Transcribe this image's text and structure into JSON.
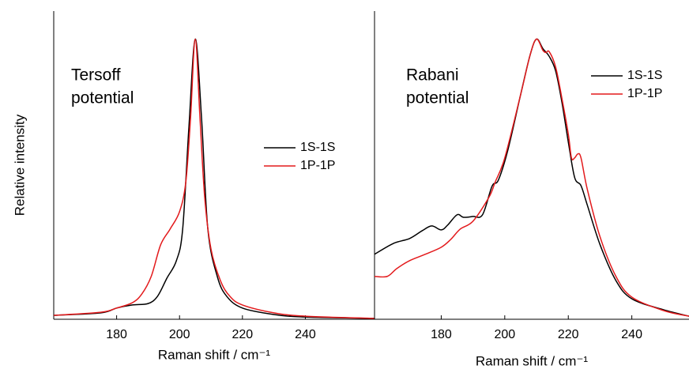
{
  "chart_data": [
    {
      "type": "line",
      "annotation": [
        "Tersoff",
        "potential"
      ],
      "x_label": "Raman shift / cm⁻¹",
      "y_label": "Relative intensity",
      "xlim": [
        160,
        262
      ],
      "xticks": [
        180,
        200,
        220,
        240
      ],
      "ylim": [
        0,
        1.1
      ],
      "legend": "right",
      "series": [
        {
          "name": "1S-1S",
          "color": "#000000",
          "x": [
            160,
            175,
            180,
            185,
            190,
            193,
            196,
            199,
            201,
            203,
            205,
            207,
            209,
            212,
            215,
            220,
            230,
            240,
            262
          ],
          "values": [
            0.014,
            0.023,
            0.04,
            0.051,
            0.056,
            0.082,
            0.147,
            0.209,
            0.322,
            0.689,
            1.0,
            0.718,
            0.322,
            0.153,
            0.082,
            0.04,
            0.017,
            0.008,
            0.003
          ]
        },
        {
          "name": "1P-1P",
          "color": "#e31a1c",
          "x": [
            160,
            175,
            180,
            185,
            188,
            191,
            194,
            197,
            200,
            202,
            203.5,
            205,
            206.5,
            208,
            210,
            213,
            216,
            220,
            230,
            240,
            262
          ],
          "values": [
            0.014,
            0.025,
            0.04,
            0.059,
            0.09,
            0.153,
            0.266,
            0.322,
            0.384,
            0.49,
            0.718,
            1.0,
            0.718,
            0.435,
            0.251,
            0.138,
            0.082,
            0.051,
            0.023,
            0.011,
            0.003
          ]
        }
      ]
    },
    {
      "type": "line",
      "annotation": [
        "Rabani",
        "potential"
      ],
      "x_label": "Raman shift / cm⁻¹",
      "xlim": [
        159,
        258
      ],
      "xticks": [
        180,
        200,
        220,
        240
      ],
      "ylim": [
        0,
        1.1
      ],
      "legend": "upper right",
      "series": [
        {
          "name": "1S-1S",
          "color": "#000000",
          "x": [
            159,
            165,
            170,
            174,
            177,
            180,
            182,
            185,
            187,
            190,
            193,
            196,
            198,
            201,
            205,
            208,
            210,
            212,
            214,
            216,
            218,
            220,
            222,
            224,
            226,
            230,
            235,
            240,
            250,
            258
          ],
          "values": [
            0.232,
            0.271,
            0.288,
            0.316,
            0.333,
            0.319,
            0.336,
            0.373,
            0.364,
            0.367,
            0.373,
            0.475,
            0.497,
            0.605,
            0.802,
            0.944,
            1.0,
            0.966,
            0.938,
            0.887,
            0.774,
            0.633,
            0.506,
            0.477,
            0.407,
            0.266,
            0.138,
            0.073,
            0.034,
            0.011
          ]
        },
        {
          "name": "1P-1P",
          "color": "#e31a1c",
          "x": [
            159,
            163,
            166,
            170,
            175,
            180,
            183,
            186,
            190,
            195,
            197,
            200,
            205,
            208,
            210,
            212,
            213,
            214,
            216,
            218,
            220,
            221,
            222,
            223,
            224,
            226,
            230,
            235,
            240,
            250,
            258
          ],
          "values": [
            0.153,
            0.153,
            0.181,
            0.209,
            0.232,
            0.257,
            0.285,
            0.322,
            0.35,
            0.435,
            0.49,
            0.576,
            0.802,
            0.944,
            1.0,
            0.96,
            0.952,
            0.955,
            0.901,
            0.788,
            0.661,
            0.576,
            0.576,
            0.59,
            0.576,
            0.463,
            0.294,
            0.153,
            0.079,
            0.031,
            0.011
          ]
        }
      ]
    }
  ]
}
